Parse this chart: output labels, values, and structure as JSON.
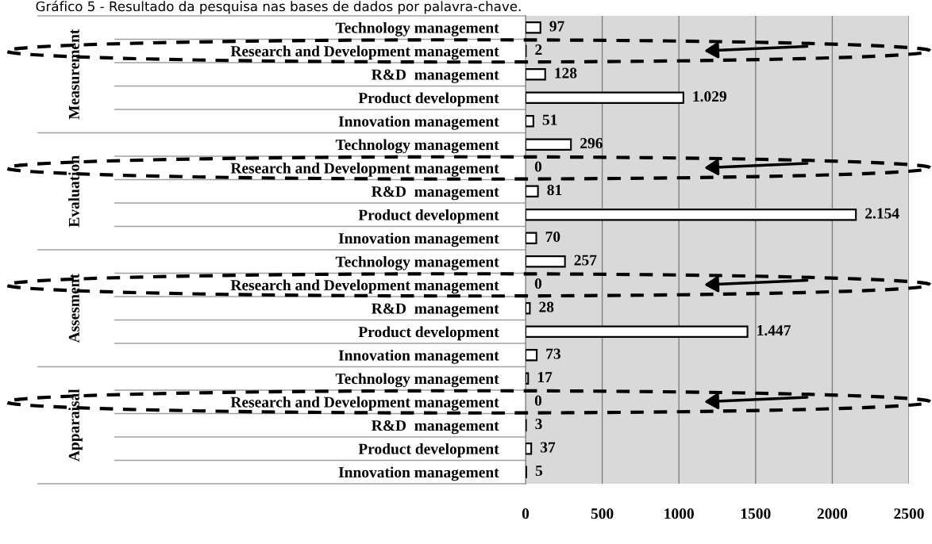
{
  "chart_data": {
    "type": "bar",
    "orientation": "horizontal",
    "title": "Gráfico 5 - Resultado da pesquisa nas bases de dados por palavra-chave.",
    "categories": [
      "Technology management",
      "Research and Development management",
      "R&D  management",
      "Product development",
      "Innovation management",
      "Technology management",
      "Research and Development management",
      "R&D  management",
      "Product development",
      "Innovation management",
      "Technology management",
      "Research and Development management",
      "R&D  management",
      "Product development",
      "Innovation management",
      "Technology management",
      "Research and Development management",
      "R&D  management",
      "Product development",
      "Innovation management"
    ],
    "values": [
      97,
      2,
      128,
      1029,
      51,
      296,
      0,
      81,
      2154,
      70,
      257,
      0,
      28,
      1447,
      73,
      17,
      0,
      3,
      37,
      5
    ],
    "value_labels": [
      "97",
      "2",
      "128",
      "1.029",
      "51",
      "296",
      "0",
      "81",
      "2.154",
      "70",
      "257",
      "0",
      "28",
      "1.447",
      "73",
      "17",
      "0",
      "3",
      "37",
      "5"
    ],
    "color": "#ffffff",
    "xlim": [
      0,
      2500
    ],
    "xticks": [
      0,
      500,
      1000,
      1500,
      2000,
      2500
    ],
    "grid": "x",
    "annotations": [
      "Measurement",
      "Evaluation",
      "Assesment",
      "Apparaisal"
    ]
  }
}
